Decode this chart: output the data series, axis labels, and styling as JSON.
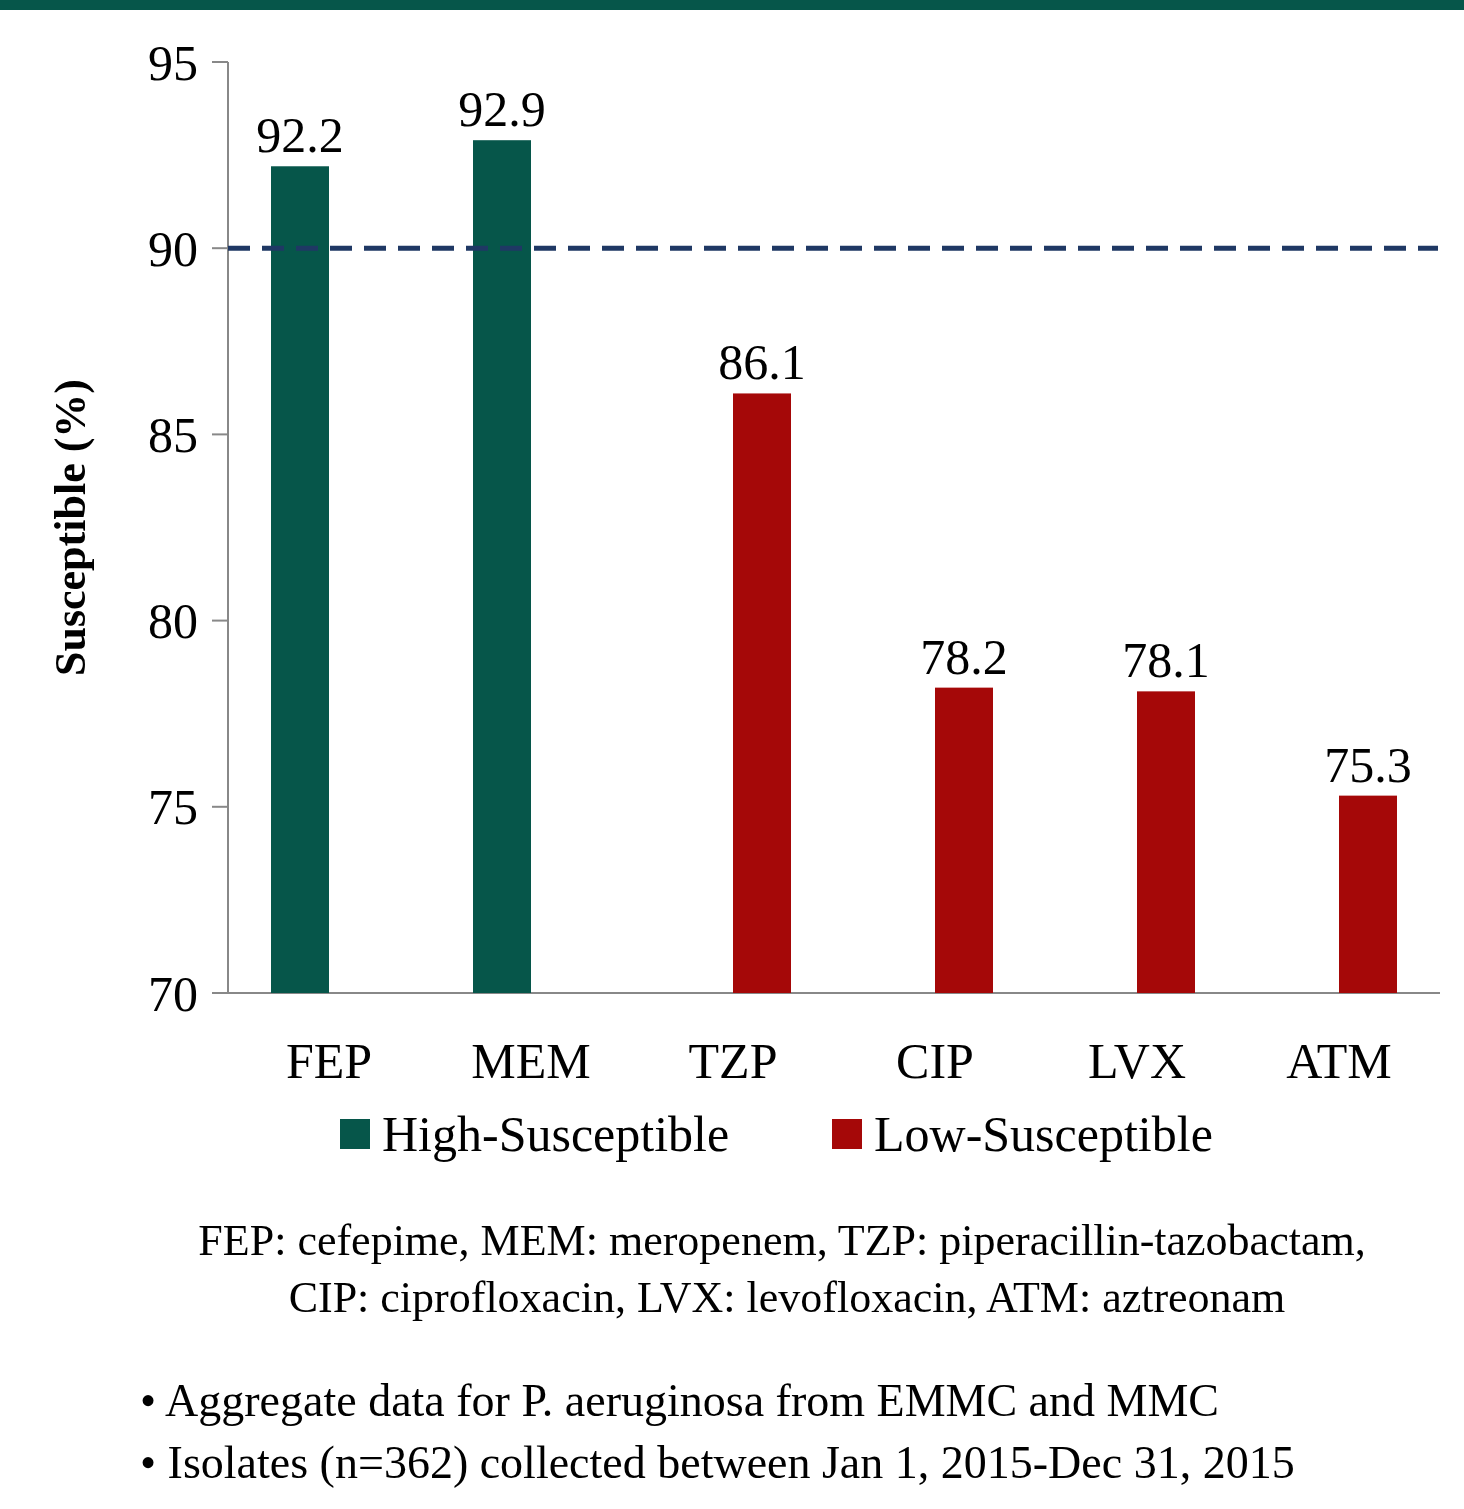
{
  "chart_data": {
    "type": "bar",
    "ylabel": "Susceptible (%)",
    "categories": [
      "FEP",
      "MEM",
      "TZP",
      "CIP",
      "LVX",
      "ATM"
    ],
    "series": [
      {
        "name": "High-Susceptible",
        "color": "#06564a",
        "values": [
          92.2,
          92.9,
          null,
          null,
          null,
          null
        ]
      },
      {
        "name": "Low-Susceptible",
        "color": "#a50808",
        "values": [
          null,
          null,
          86.1,
          78.2,
          78.1,
          75.3
        ]
      }
    ],
    "ylim": [
      70,
      95
    ],
    "yticks": [
      70,
      75,
      80,
      85,
      90,
      95
    ],
    "grid": false,
    "legend": "bottom",
    "data_labels": true,
    "ref_lines": [
      {
        "axis": "y",
        "value": 90,
        "color": "#1f3864",
        "line_style": "dashed"
      }
    ],
    "annotations": [
      "FEP: cefepime, MEM: meropenem, TZP: piperacillin-tazobactam,",
      "CIP: ciprofloxacin, LVX: levofloxacin, ATM: aztreonam",
      "• Aggregate data for P. aeruginosa from EMMC and MMC",
      "• Isolates (n=362) collected between Jan 1, 2015-Dec 31, 2015"
    ]
  }
}
